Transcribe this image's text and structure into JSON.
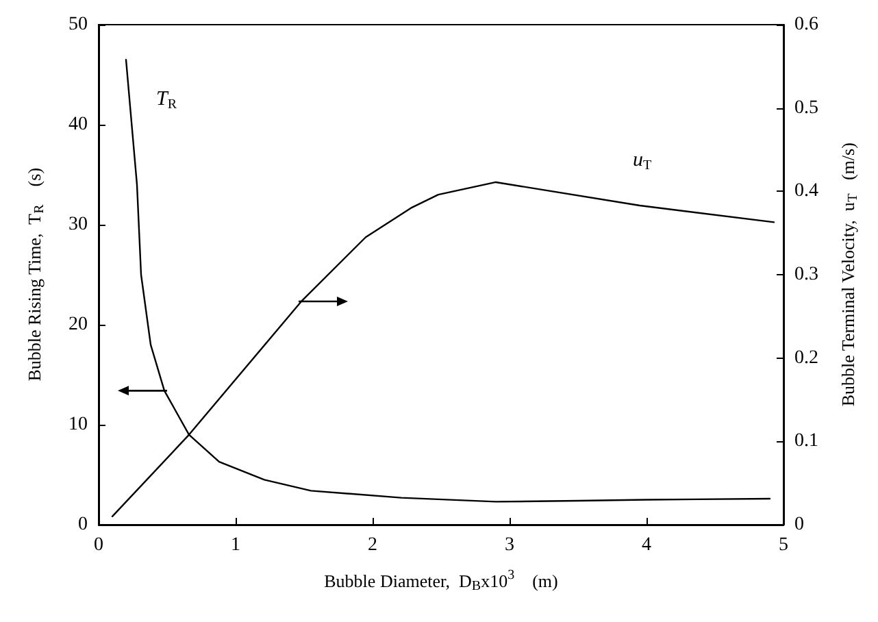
{
  "chart_data": {
    "type": "line",
    "xlabel": "Bubble Diameter,  D$_{B}$x10$^{3}$    (m)",
    "ylabel": "Bubble Rising Time,  T$_{R}$    (s)",
    "y2label": "Bubble Terminal Velocity,  u$_{T}$   (m/s)",
    "series": [
      {
        "name": "T$_{R}$",
        "color": "#000000",
        "x": [
          0.2,
          0.28,
          0.31,
          0.38,
          0.48,
          0.66,
          0.88,
          1.21,
          1.55,
          2.21,
          2.9,
          3.5,
          4.0,
          4.9
        ],
        "values": [
          46.5,
          34,
          25,
          18,
          13.4,
          9,
          6.3,
          4.5,
          3.4,
          2.7,
          2.3,
          2.4,
          2.5,
          2.6
        ]
      },
      {
        "name": "u$_{T}$",
        "color": "#000000",
        "axis": "y2",
        "x": [
          0.1,
          0.66,
          1.48,
          1.95,
          2.28,
          2.48,
          2.9,
          3.95,
          4.93
        ],
        "values": [
          0.01,
          0.108,
          0.268,
          0.345,
          0.38,
          0.396,
          0.411,
          0.383,
          0.363
        ]
      }
    ],
    "xlim": [
      0,
      5
    ],
    "xticks": [
      0,
      1,
      2,
      3,
      4,
      5
    ],
    "ylim": [
      0,
      50
    ],
    "yticks": [
      0,
      10,
      20,
      30,
      40,
      50
    ],
    "y2lim": [
      0,
      0.6
    ],
    "y2ticks": [
      0,
      0.1,
      0.2,
      0.3,
      0.4,
      0.5,
      0.6
    ],
    "grid": false,
    "legend": false,
    "marker": "none",
    "line_style": "solid"
  }
}
